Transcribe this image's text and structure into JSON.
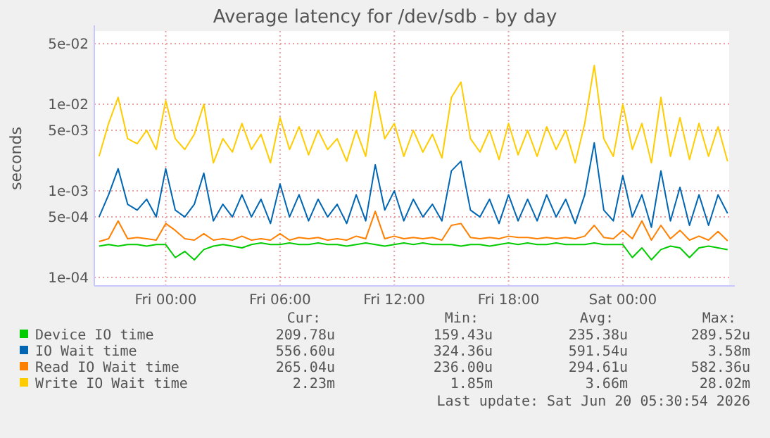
{
  "chart_data": {
    "type": "line",
    "title": "Average latency for /dev/sdb - by day",
    "ylabel": "seconds",
    "log": true,
    "grid": true,
    "legend": "bottom",
    "line_style": "solid",
    "marker": "none",
    "xlim": [
      "2026-06-18T20:15",
      "2026-06-20T05:35"
    ],
    "xticks": [
      {
        "value": "2026-06-19T00:00",
        "label": "Fri 00:00"
      },
      {
        "value": "2026-06-19T06:00",
        "label": "Fri 06:00"
      },
      {
        "value": "2026-06-19T12:00",
        "label": "Fri 12:00"
      },
      {
        "value": "2026-06-19T18:00",
        "label": "Fri 18:00"
      },
      {
        "value": "2026-06-20T00:00",
        "label": "Sat 00:00"
      }
    ],
    "ylim": [
      8e-05,
      0.07
    ],
    "yticks": [
      {
        "value": 0.0001,
        "label": "1e-04"
      },
      {
        "value": 0.0005,
        "label": "5e-04"
      },
      {
        "value": 0.001,
        "label": "1e-03"
      },
      {
        "value": 0.005,
        "label": "5e-03"
      },
      {
        "value": 0.01,
        "label": "1e-02"
      },
      {
        "value": 0.05,
        "label": "5e-02"
      }
    ],
    "x": [
      "2026-06-18T20:30",
      "2026-06-18T21:00",
      "2026-06-18T21:30",
      "2026-06-18T22:00",
      "2026-06-18T22:30",
      "2026-06-18T23:00",
      "2026-06-18T23:30",
      "2026-06-19T00:00",
      "2026-06-19T00:30",
      "2026-06-19T01:00",
      "2026-06-19T01:30",
      "2026-06-19T02:00",
      "2026-06-19T02:30",
      "2026-06-19T03:00",
      "2026-06-19T03:30",
      "2026-06-19T04:00",
      "2026-06-19T04:30",
      "2026-06-19T05:00",
      "2026-06-19T05:30",
      "2026-06-19T06:00",
      "2026-06-19T06:30",
      "2026-06-19T07:00",
      "2026-06-19T07:30",
      "2026-06-19T08:00",
      "2026-06-19T08:30",
      "2026-06-19T09:00",
      "2026-06-19T09:30",
      "2026-06-19T10:00",
      "2026-06-19T10:30",
      "2026-06-19T11:00",
      "2026-06-19T11:30",
      "2026-06-19T12:00",
      "2026-06-19T12:30",
      "2026-06-19T13:00",
      "2026-06-19T13:30",
      "2026-06-19T14:00",
      "2026-06-19T14:30",
      "2026-06-19T15:00",
      "2026-06-19T15:30",
      "2026-06-19T16:00",
      "2026-06-19T16:30",
      "2026-06-19T17:00",
      "2026-06-19T17:30",
      "2026-06-19T18:00",
      "2026-06-19T18:30",
      "2026-06-19T19:00",
      "2026-06-19T19:30",
      "2026-06-19T20:00",
      "2026-06-19T20:30",
      "2026-06-19T21:00",
      "2026-06-19T21:30",
      "2026-06-19T22:00",
      "2026-06-19T22:30",
      "2026-06-19T23:00",
      "2026-06-19T23:30",
      "2026-06-20T00:00",
      "2026-06-20T00:30",
      "2026-06-20T01:00",
      "2026-06-20T01:30",
      "2026-06-20T02:00",
      "2026-06-20T02:30",
      "2026-06-20T03:00",
      "2026-06-20T03:30",
      "2026-06-20T04:00",
      "2026-06-20T04:30",
      "2026-06-20T05:00",
      "2026-06-20T05:30"
    ],
    "series": [
      {
        "name": "Device IO time",
        "color": "#00cc00",
        "values": [
          0.00023,
          0.00024,
          0.00023,
          0.00024,
          0.00024,
          0.00023,
          0.00024,
          0.00024,
          0.00017,
          0.0002,
          0.00016,
          0.00021,
          0.00023,
          0.00024,
          0.00023,
          0.00022,
          0.00024,
          0.00025,
          0.00024,
          0.00024,
          0.00025,
          0.00024,
          0.00024,
          0.00025,
          0.00024,
          0.00024,
          0.00023,
          0.00024,
          0.00025,
          0.00024,
          0.00023,
          0.00024,
          0.00025,
          0.00024,
          0.00025,
          0.00024,
          0.00024,
          0.00024,
          0.00023,
          0.00024,
          0.00024,
          0.00023,
          0.00024,
          0.00025,
          0.00024,
          0.00025,
          0.00024,
          0.00024,
          0.00025,
          0.00024,
          0.00024,
          0.00024,
          0.00025,
          0.00024,
          0.00024,
          0.00024,
          0.00017,
          0.00022,
          0.00016,
          0.00021,
          0.00023,
          0.00022,
          0.00017,
          0.00022,
          0.00023,
          0.00022,
          0.00021
        ]
      },
      {
        "name": "IO Wait time",
        "color": "#0066b3",
        "values": [
          0.0005,
          0.0009,
          0.0018,
          0.0007,
          0.0006,
          0.0008,
          0.0005,
          0.0018,
          0.0006,
          0.0005,
          0.0007,
          0.0016,
          0.00045,
          0.0007,
          0.0005,
          0.0009,
          0.0005,
          0.0008,
          0.00042,
          0.0012,
          0.0005,
          0.0009,
          0.00045,
          0.0008,
          0.0005,
          0.0007,
          0.00042,
          0.0009,
          0.00045,
          0.002,
          0.0006,
          0.001,
          0.00045,
          0.0008,
          0.0005,
          0.0007,
          0.00045,
          0.0017,
          0.0022,
          0.0006,
          0.0005,
          0.0008,
          0.00042,
          0.0009,
          0.00045,
          0.0008,
          0.00045,
          0.0009,
          0.0005,
          0.0008,
          0.00042,
          0.0009,
          0.00358,
          0.0006,
          0.00045,
          0.0015,
          0.0005,
          0.0009,
          0.00038,
          0.0017,
          0.00045,
          0.0011,
          0.0004,
          0.0009,
          0.0004,
          0.0009,
          0.00055
        ]
      },
      {
        "name": "Read IO Wait time",
        "color": "#ff8000",
        "values": [
          0.00026,
          0.00028,
          0.00045,
          0.00028,
          0.00029,
          0.00028,
          0.00027,
          0.00042,
          0.00035,
          0.00028,
          0.00027,
          0.00032,
          0.00027,
          0.00028,
          0.00027,
          0.0003,
          0.00027,
          0.00028,
          0.00027,
          0.00032,
          0.00027,
          0.00029,
          0.00028,
          0.00029,
          0.00027,
          0.00028,
          0.00027,
          0.0003,
          0.00028,
          0.00058,
          0.00028,
          0.0003,
          0.00028,
          0.00029,
          0.00028,
          0.00029,
          0.00027,
          0.0004,
          0.00042,
          0.00029,
          0.00028,
          0.00029,
          0.00028,
          0.0003,
          0.00029,
          0.00029,
          0.00028,
          0.00029,
          0.00028,
          0.00029,
          0.00028,
          0.0003,
          0.0004,
          0.00029,
          0.00028,
          0.00035,
          0.00028,
          0.00045,
          0.00027,
          0.0004,
          0.00028,
          0.00035,
          0.00027,
          0.0003,
          0.00027,
          0.00034,
          0.000265
        ]
      },
      {
        "name": "Write IO Wait time",
        "color": "#ffcc00",
        "values": [
          0.0025,
          0.006,
          0.012,
          0.004,
          0.0035,
          0.005,
          0.003,
          0.011,
          0.004,
          0.003,
          0.0045,
          0.01,
          0.0021,
          0.004,
          0.0028,
          0.006,
          0.003,
          0.0045,
          0.0021,
          0.007,
          0.003,
          0.0055,
          0.0026,
          0.005,
          0.003,
          0.004,
          0.0022,
          0.005,
          0.0025,
          0.014,
          0.004,
          0.006,
          0.0025,
          0.005,
          0.0028,
          0.0045,
          0.0024,
          0.012,
          0.018,
          0.004,
          0.0028,
          0.005,
          0.0023,
          0.006,
          0.0026,
          0.005,
          0.0025,
          0.0055,
          0.003,
          0.005,
          0.0021,
          0.006,
          0.028,
          0.004,
          0.0025,
          0.01,
          0.003,
          0.006,
          0.0021,
          0.012,
          0.0025,
          0.007,
          0.0023,
          0.006,
          0.0025,
          0.0055,
          0.0022
        ]
      }
    ],
    "annotations": [
      "Cur:",
      "Min:",
      "Avg:",
      "Max:",
      "209.78u",
      "159.43u",
      "235.38u",
      "289.52u",
      "556.60u",
      "324.36u",
      "591.54u",
      "3.58m",
      "265.04u",
      "236.00u",
      "294.61u",
      "582.36u",
      "2.23m",
      "1.85m",
      "3.66m",
      "28.02m",
      "Last update: Sat Jun 20 05:30:54 2026"
    ]
  }
}
